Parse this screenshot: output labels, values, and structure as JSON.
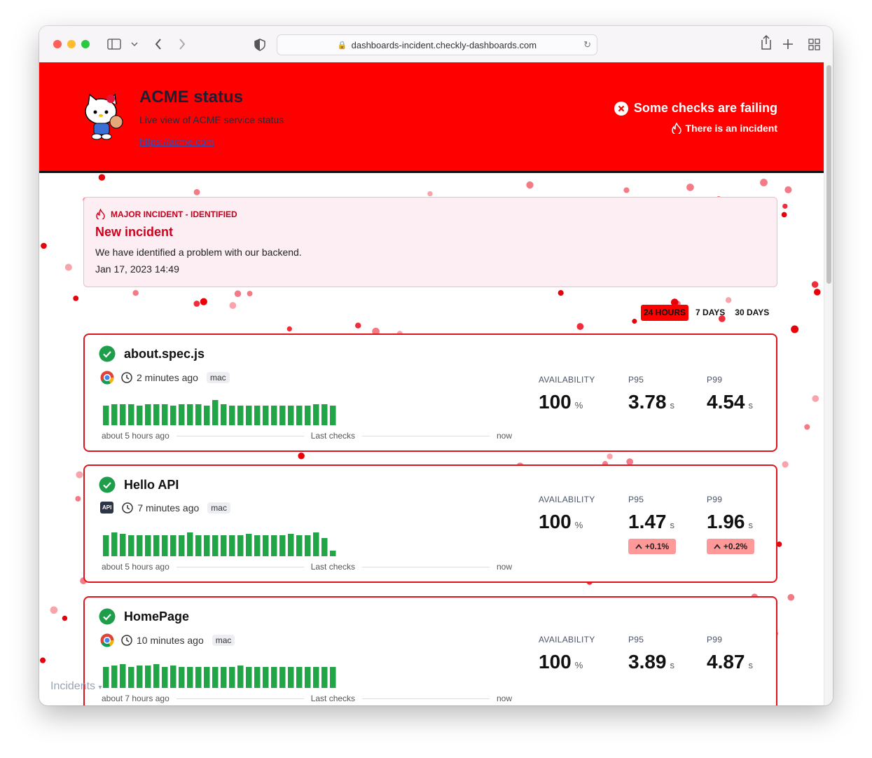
{
  "browser": {
    "url": "dashboards-incident.checkly-dashboards.com"
  },
  "header": {
    "title": "ACME status",
    "subtitle": "Live view of ACME service status",
    "link": "https://acme.com",
    "status": "Some checks are failing",
    "incident_note": "There is an incident"
  },
  "incident": {
    "label": "MAJOR INCIDENT - IDENTIFIED",
    "title": "New incident",
    "message": "We have identified a problem with our backend.",
    "date": "Jan 17, 2023 14:49"
  },
  "ranges": [
    "24 HOURS",
    "7 DAYS",
    "30 DAYS"
  ],
  "labels": {
    "availability": "AVAILABILITY",
    "p95": "P95",
    "p99": "P99"
  },
  "checks": [
    {
      "name": "about.spec.js",
      "last_run": "2 minutes ago",
      "location": "mac",
      "start": "about 5 hours ago",
      "axis_label": "Last checks",
      "end": "now",
      "availability": {
        "value": 100,
        "unit": "%"
      },
      "p95": {
        "value": 3.78,
        "unit": "s"
      },
      "p99": {
        "value": 4.54,
        "unit": "s"
      },
      "bars": [
        28,
        30,
        30,
        30,
        28,
        30,
        30,
        30,
        28,
        30,
        30,
        30,
        28,
        36,
        30,
        28,
        28,
        28,
        28,
        28,
        28,
        28,
        28,
        28,
        28,
        30,
        30,
        28
      ]
    },
    {
      "name": "Hello API",
      "type_badge": "API",
      "last_run": "7 minutes ago",
      "location": "mac",
      "start": "about 5 hours ago",
      "axis_label": "Last checks",
      "end": "now",
      "availability": {
        "value": 100,
        "unit": "%"
      },
      "p95": {
        "value": 1.47,
        "unit": "s",
        "change": "+0.1%"
      },
      "p99": {
        "value": 1.96,
        "unit": "s",
        "change": "+0.2%"
      },
      "bars": [
        30,
        34,
        32,
        30,
        30,
        30,
        30,
        30,
        30,
        30,
        34,
        30,
        30,
        30,
        30,
        30,
        30,
        32,
        30,
        30,
        30,
        30,
        32,
        30,
        30,
        34,
        26,
        8
      ]
    },
    {
      "name": "HomePage",
      "last_run": "10 minutes ago",
      "location": "mac",
      "start": "about 7 hours ago",
      "axis_label": "Last checks",
      "end": "now",
      "availability": {
        "value": 100,
        "unit": "%"
      },
      "p95": {
        "value": 3.89,
        "unit": "s"
      },
      "p99": {
        "value": 4.87,
        "unit": "s"
      },
      "bars": [
        30,
        32,
        34,
        30,
        32,
        32,
        34,
        30,
        32,
        30,
        30,
        30,
        30,
        30,
        30,
        30,
        32,
        30,
        30,
        30,
        30,
        30,
        30,
        30,
        30,
        30,
        30,
        30
      ]
    }
  ],
  "footer_tab": "Incidents"
}
